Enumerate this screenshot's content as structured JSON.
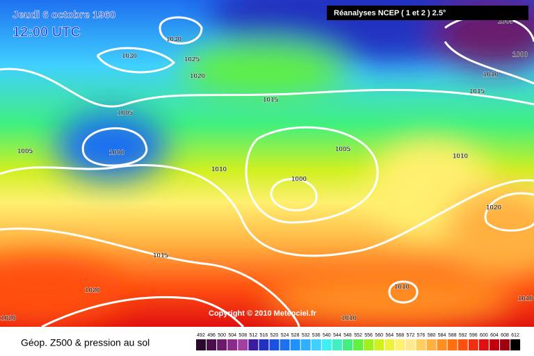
{
  "header": {
    "date": "Jeudi 6 octobre 1960",
    "time": "12:00 UTC",
    "source": "Réanalyses NCEP ( 1 et 2 ) 2.5°"
  },
  "map": {
    "copyright": "Copyright © 2010 Meteociel.fr",
    "isobar_labels": [
      1030,
      1030,
      1025,
      1020,
      1015,
      1005,
      1000,
      1005,
      1010,
      1000,
      1005,
      1010,
      1015,
      1010,
      1005,
      1000,
      1020,
      1015,
      1020,
      1010,
      1010,
      1020,
      1010
    ]
  },
  "legend": {
    "title": "Géop. Z500 & pression au sol",
    "scale": [
      492,
      496,
      500,
      504,
      508,
      512,
      516,
      520,
      524,
      528,
      532,
      536,
      540,
      544,
      548,
      552,
      556,
      560,
      564,
      568,
      572,
      576,
      580,
      584,
      588,
      592,
      596,
      600,
      604,
      608,
      612
    ],
    "colors": [
      "#2a0a2a",
      "#4a0f4a",
      "#6a1a6a",
      "#8a2a8a",
      "#a040a0",
      "#3a1aa0",
      "#2030c0",
      "#1e50e0",
      "#1e70f0",
      "#1e90ff",
      "#30b0ff",
      "#40d0ff",
      "#40f0f0",
      "#40f0c0",
      "#40f080",
      "#60f040",
      "#a0f020",
      "#d0f020",
      "#f0f040",
      "#fff070",
      "#ffe890",
      "#ffd060",
      "#ffb040",
      "#ff9020",
      "#ff7010",
      "#ff5010",
      "#f03010",
      "#e01010",
      "#c00010",
      "#a00010",
      "#000000"
    ]
  }
}
